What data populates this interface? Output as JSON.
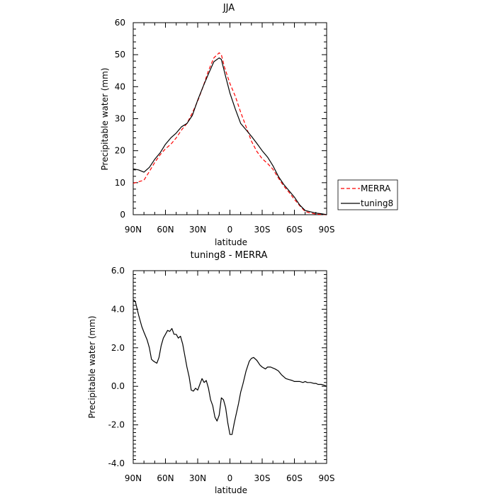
{
  "chart_data": [
    {
      "type": "line",
      "title": "JJA",
      "xlabel": "latitude",
      "ylabel": "Precipitable water (mm)",
      "xlim": [
        90,
        -90
      ],
      "ylim": [
        0,
        60
      ],
      "x_ticks": [
        90,
        60,
        30,
        0,
        -30,
        -60,
        -90
      ],
      "x_tick_labels": [
        "90N",
        "60N",
        "30N",
        "0",
        "30S",
        "60S",
        "90S"
      ],
      "y_ticks": [
        0,
        10,
        20,
        30,
        40,
        50,
        60
      ],
      "y_tick_labels": [
        "0",
        "10",
        "20",
        "30",
        "40",
        "50",
        "60"
      ],
      "legend": {
        "placement": "right"
      },
      "series": [
        {
          "name": "MERRA",
          "color": "#ff0000",
          "dash": true,
          "x": [
            90,
            85,
            80,
            75,
            70,
            65,
            60,
            55,
            50,
            45,
            40,
            35,
            30,
            25,
            20,
            15,
            10,
            8,
            5,
            0,
            -5,
            -10,
            -15,
            -20,
            -25,
            -30,
            -35,
            -40,
            -45,
            -50,
            -55,
            -60,
            -65,
            -70,
            -75,
            -80,
            -85,
            -90
          ],
          "y": [
            9.8,
            10.3,
            10.8,
            13.5,
            16.3,
            18.7,
            20.6,
            22,
            24,
            26.5,
            28.5,
            31.8,
            35.5,
            40,
            45,
            49,
            50.6,
            50,
            46,
            41,
            37,
            32,
            27.5,
            23,
            19.8,
            17.5,
            16,
            14.2,
            11.5,
            9,
            7,
            4.8,
            2.8,
            1,
            0.5,
            0.2,
            0.1,
            0
          ]
        },
        {
          "name": "tuning8",
          "color": "#000000",
          "dash": false,
          "x": [
            90,
            85,
            80,
            75,
            70,
            65,
            60,
            55,
            50,
            45,
            40,
            35,
            30,
            25,
            20,
            15,
            10,
            8,
            5,
            0,
            -5,
            -10,
            -15,
            -20,
            -25,
            -30,
            -35,
            -40,
            -45,
            -50,
            -55,
            -60,
            -65,
            -70,
            -75,
            -80,
            -85,
            -90
          ],
          "y": [
            14.3,
            14,
            13.3,
            14.8,
            17.3,
            19.3,
            22,
            24,
            25.5,
            27.5,
            28.5,
            31,
            35.8,
            40,
            44,
            47.8,
            49,
            48.5,
            44.5,
            38,
            33,
            28.5,
            26.5,
            24.5,
            22.3,
            20,
            18,
            15.3,
            12,
            9.5,
            7.5,
            5.5,
            3,
            1.3,
            0.9,
            0.5,
            0.3,
            0
          ]
        }
      ]
    },
    {
      "type": "line",
      "title": "tuning8 - MERRA",
      "xlabel": "latitude",
      "ylabel": "Precipitable water (mm)",
      "xlim": [
        90,
        -90
      ],
      "ylim": [
        -4,
        6
      ],
      "x_ticks": [
        90,
        60,
        30,
        0,
        -30,
        -60,
        -90
      ],
      "x_tick_labels": [
        "90N",
        "60N",
        "30N",
        "0",
        "30S",
        "60S",
        "90S"
      ],
      "y_ticks": [
        -4,
        -2,
        0,
        2,
        4,
        6
      ],
      "y_tick_labels": [
        "-4.0",
        "-2.0",
        "0.0",
        "2.0",
        "4.0",
        "6.0"
      ],
      "series": [
        {
          "name": "",
          "color": "#000000",
          "dash": false,
          "x": [
            90,
            88,
            85,
            82,
            80,
            77,
            75,
            73,
            71,
            68,
            66,
            64,
            62,
            60,
            58,
            56,
            54,
            52,
            50,
            48,
            46,
            44,
            42,
            40,
            38,
            36,
            34,
            32,
            30,
            28,
            26,
            24,
            22,
            20,
            18,
            16,
            14,
            12,
            10,
            8,
            6,
            4,
            2,
            0,
            -2,
            -4,
            -6,
            -8,
            -10,
            -12,
            -15,
            -18,
            -20,
            -22,
            -25,
            -28,
            -30,
            -33,
            -35,
            -38,
            -40,
            -42,
            -45,
            -48,
            -50,
            -52,
            -55,
            -58,
            -60,
            -62,
            -65,
            -68,
            -70,
            -72,
            -75,
            -78,
            -80,
            -82,
            -85,
            -88,
            -90
          ],
          "y": [
            4.5,
            4.4,
            3.7,
            3.1,
            2.8,
            2.4,
            2,
            1.4,
            1.3,
            1.2,
            1.5,
            2.1,
            2.5,
            2.7,
            2.9,
            2.85,
            3,
            2.7,
            2.7,
            2.5,
            2.6,
            2.2,
            1.6,
            1,
            0.5,
            -0.2,
            -0.25,
            -0.1,
            -0.2,
            0.1,
            0.4,
            0.2,
            0.3,
            -0.1,
            -0.7,
            -1.0,
            -1.6,
            -1.8,
            -1.5,
            -0.6,
            -0.7,
            -1.1,
            -1.9,
            -2.5,
            -2.5,
            -1.9,
            -1.4,
            -0.9,
            -0.3,
            0.1,
            0.8,
            1.3,
            1.45,
            1.5,
            1.35,
            1.1,
            1,
            0.9,
            1,
            1,
            0.95,
            0.9,
            0.8,
            0.6,
            0.5,
            0.4,
            0.35,
            0.3,
            0.25,
            0.25,
            0.25,
            0.2,
            0.25,
            0.2,
            0.2,
            0.15,
            0.15,
            0.1,
            0.1,
            0.05,
            0
          ]
        }
      ]
    }
  ]
}
